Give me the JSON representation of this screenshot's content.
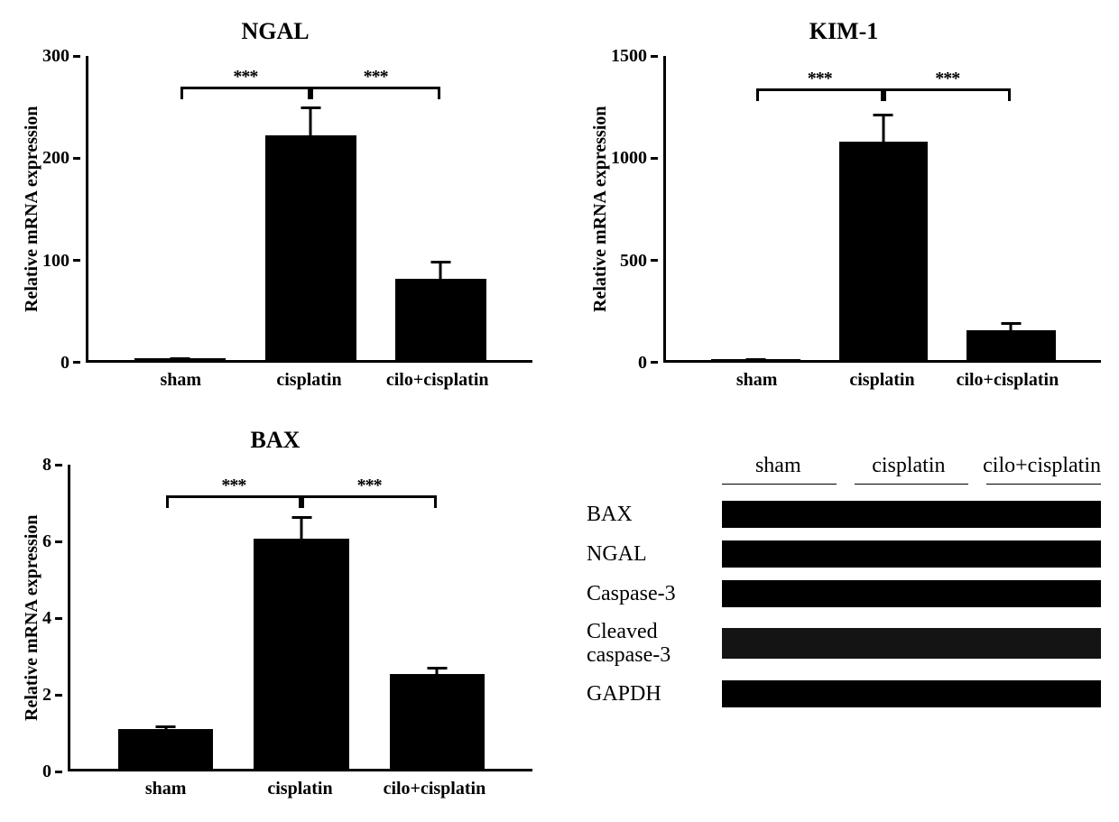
{
  "charts": [
    {
      "title": "NGAL",
      "type": "bar",
      "ylabel": "Relative mRNA expression",
      "ylim": [
        0,
        300
      ],
      "yticks": [
        0,
        100,
        200,
        300
      ],
      "categories": [
        "sham",
        "cisplatin",
        "cilo+cisplatin"
      ],
      "values": [
        2,
        222,
        80
      ],
      "errors": [
        1,
        28,
        18
      ],
      "bar_color": "#000000",
      "axis_color": "#000000",
      "background_color": "#ffffff",
      "bar_width": 0.7,
      "label_fontsize": 20,
      "title_fontsize": 26,
      "sig": [
        {
          "from": 0,
          "to": 1,
          "stars": "***",
          "y": 270
        },
        {
          "from": 1,
          "to": 2,
          "stars": "***",
          "y": 270
        }
      ]
    },
    {
      "title": "KIM-1",
      "type": "bar",
      "ylabel": "Relative mRNA expression",
      "ylim": [
        0,
        1500
      ],
      "yticks": [
        0,
        500,
        1000,
        1500
      ],
      "categories": [
        "sham",
        "cisplatin",
        "cilo+cisplatin"
      ],
      "values": [
        5,
        1075,
        145
      ],
      "errors": [
        3,
        140,
        40
      ],
      "bar_color": "#000000",
      "axis_color": "#000000",
      "background_color": "#ffffff",
      "bar_width": 0.7,
      "label_fontsize": 20,
      "title_fontsize": 26,
      "sig": [
        {
          "from": 0,
          "to": 1,
          "stars": "***",
          "y": 1340
        },
        {
          "from": 1,
          "to": 2,
          "stars": "***",
          "y": 1340
        }
      ]
    },
    {
      "title": "BAX",
      "type": "bar",
      "ylabel": "Relative mRNA expression",
      "ylim": [
        0,
        8
      ],
      "yticks": [
        0,
        2,
        4,
        6,
        8
      ],
      "categories": [
        "sham",
        "cisplatin",
        "cilo+cisplatin"
      ],
      "values": [
        1.05,
        6.05,
        2.5
      ],
      "errors": [
        0.08,
        0.6,
        0.18
      ],
      "bar_color": "#000000",
      "axis_color": "#000000",
      "background_color": "#ffffff",
      "bar_width": 0.7,
      "label_fontsize": 20,
      "title_fontsize": 26,
      "sig": [
        {
          "from": 0,
          "to": 1,
          "stars": "***",
          "y": 7.2
        },
        {
          "from": 1,
          "to": 2,
          "stars": "***",
          "y": 7.2
        }
      ]
    }
  ],
  "western_blot": {
    "columns": [
      "sham",
      "cisplatin",
      "cilo+cisplatin"
    ],
    "rows": [
      {
        "label": "BAX",
        "band_style": "solid",
        "height": 30
      },
      {
        "label": "NGAL",
        "band_style": "solid",
        "height": 30
      },
      {
        "label": "Caspase-3",
        "band_style": "solid",
        "height": 30
      },
      {
        "label": "Cleaved caspase-3",
        "band_style": "noisy",
        "height": 34
      },
      {
        "label": "GAPDH",
        "band_style": "solid",
        "height": 30
      }
    ],
    "band_color": "#000000",
    "label_fontsize": 24
  }
}
